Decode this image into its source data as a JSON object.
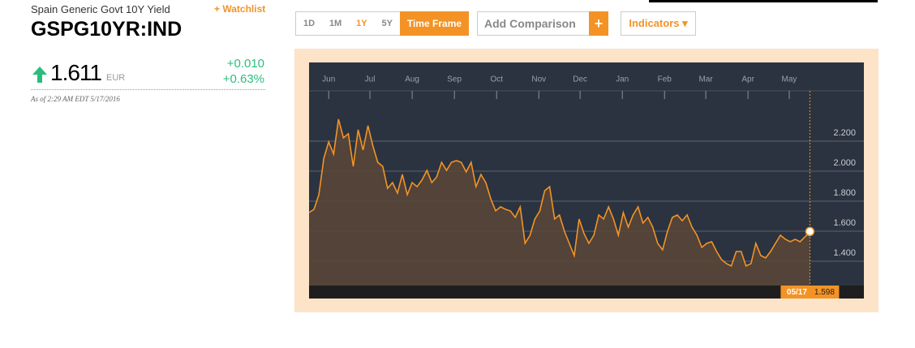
{
  "header": {
    "name": "Spain Generic Govt 10Y Yield",
    "watchlist": "+ Watchlist",
    "ticker": "GSPG10YR:IND",
    "price": "1.611",
    "currency": "EUR",
    "change": "+0.010",
    "change_pct": "+0.63%",
    "as_of": "As of 2:29 AM EDT 5/17/2016"
  },
  "toolbar": {
    "timeframes": [
      "1D",
      "1M",
      "1Y",
      "5Y"
    ],
    "time_frame": "Time Frame",
    "add_comparison": "Add Comparison",
    "add": "+",
    "indicators": "Indicators ▾"
  },
  "chart_data": {
    "type": "area-line",
    "color": "#f39325",
    "fill": "#5a4637",
    "grid": true,
    "cursor_date": "05/17",
    "values": [
      1.724,
      1.746,
      1.843,
      2.086,
      2.195,
      2.114,
      2.346,
      2.222,
      2.249,
      2.032,
      2.276,
      2.141,
      2.303,
      2.168,
      2.059,
      2.032,
      1.886,
      1.924,
      1.854,
      1.978,
      1.843,
      1.924,
      1.897,
      1.941,
      2.005,
      1.924,
      1.962,
      2.059,
      2.005,
      2.059,
      2.07,
      2.059,
      1.995,
      2.059,
      1.897,
      1.978,
      1.924,
      1.816,
      1.735,
      1.762,
      1.746,
      1.735,
      1.692,
      1.762,
      1.519,
      1.573,
      1.681,
      1.735,
      1.87,
      1.897,
      1.681,
      1.708,
      1.6,
      1.519,
      1.438,
      1.681,
      1.584,
      1.519,
      1.573,
      1.708,
      1.681,
      1.762,
      1.681,
      1.573,
      1.724,
      1.627,
      1.708,
      1.762,
      1.654,
      1.692,
      1.627,
      1.519,
      1.476,
      1.6,
      1.692,
      1.708,
      1.67,
      1.708,
      1.627,
      1.573,
      1.492,
      1.519,
      1.53,
      1.465,
      1.411,
      1.384,
      1.368,
      1.465,
      1.465,
      1.368,
      1.384,
      1.519,
      1.438,
      1.422,
      1.465,
      1.519,
      1.573,
      1.546,
      1.53,
      1.546,
      1.53,
      1.562,
      1.598
    ],
    "xlim": [
      0,
      113
    ],
    "xticks": [
      {
        "value": 4.0,
        "label": "Jun"
      },
      {
        "value": 12.4,
        "label": "Jul"
      },
      {
        "value": 21.0,
        "label": "Aug"
      },
      {
        "value": 29.6,
        "label": "Sep"
      },
      {
        "value": 38.2,
        "label": "Oct"
      },
      {
        "value": 46.8,
        "label": "Nov"
      },
      {
        "value": 55.2,
        "label": "Dec"
      },
      {
        "value": 63.8,
        "label": "Jan"
      },
      {
        "value": 72.4,
        "label": "Feb"
      },
      {
        "value": 80.8,
        "label": "Mar"
      },
      {
        "value": 89.4,
        "label": "Apr"
      },
      {
        "value": 97.8,
        "label": "May"
      }
    ],
    "ylim": [
      1.238,
      2.535
    ],
    "yticks": [
      {
        "value": 2.2,
        "label": "2.200"
      },
      {
        "value": 2.0,
        "label": "2.000"
      },
      {
        "value": 1.8,
        "label": "1.800"
      },
      {
        "value": 1.6,
        "label": "1.600"
      },
      {
        "value": 1.4,
        "label": "1.400"
      }
    ]
  }
}
